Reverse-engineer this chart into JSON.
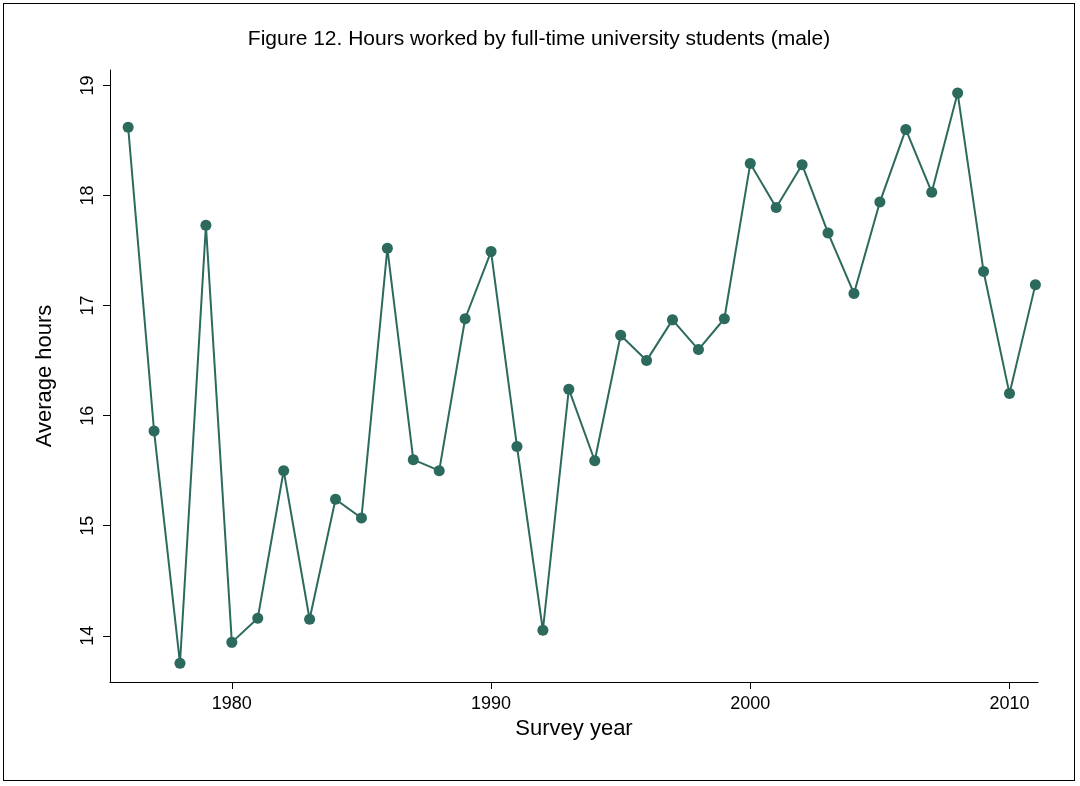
{
  "chart_data": {
    "type": "line",
    "title": "Figure 12. Hours worked by full-time university students (male)",
    "xlabel": "Survey year",
    "ylabel": "Average hours",
    "x": [
      1976,
      1977,
      1978,
      1979,
      1980,
      1981,
      1982,
      1983,
      1984,
      1985,
      1986,
      1987,
      1988,
      1989,
      1990,
      1991,
      1992,
      1993,
      1994,
      1995,
      1996,
      1997,
      1998,
      1999,
      2000,
      2001,
      2002,
      2003,
      2004,
      2005,
      2006,
      2007,
      2008,
      2009,
      2010,
      2011
    ],
    "series": [
      {
        "color": "#2d6a5e",
        "values": [
          18.62,
          15.86,
          13.75,
          17.73,
          13.94,
          14.16,
          15.5,
          14.15,
          15.24,
          15.07,
          17.52,
          15.6,
          15.5,
          16.88,
          17.49,
          15.72,
          14.05,
          16.24,
          15.59,
          16.73,
          16.5,
          16.87,
          16.6,
          16.88,
          18.29,
          17.89,
          18.28,
          17.66,
          17.11,
          17.94,
          18.6,
          18.03,
          18.93,
          17.31,
          16.2,
          17.19
        ]
      }
    ],
    "xlim": [
      1975.3,
      2011.1
    ],
    "xticks": [
      1980,
      1990,
      2000,
      2010
    ],
    "ylim": [
      13.58,
      19.14
    ],
    "yticks": [
      14,
      15,
      16,
      17,
      18,
      19
    ],
    "grid": false,
    "marker": "circle",
    "line_style": "solid"
  }
}
